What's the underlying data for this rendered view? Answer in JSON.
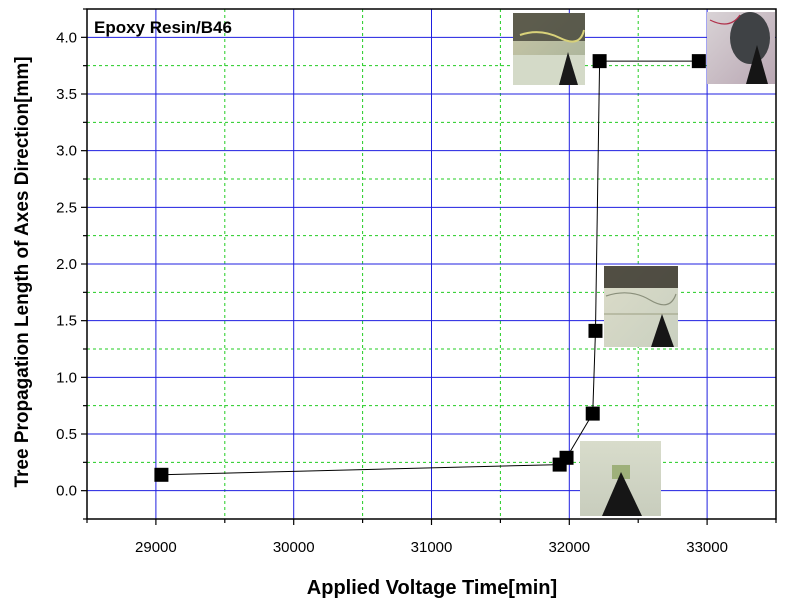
{
  "chart_data": {
    "type": "scatter",
    "title": "Epoxy Resin/B46",
    "xlabel": "Applied Voltage Time[min]",
    "ylabel": "Tree Propagation Length of Axes Direction[mm]",
    "xlim": [
      28500,
      33500
    ],
    "ylim": [
      -0.25,
      4.25
    ],
    "xticks": [
      "29000",
      "30000",
      "31000",
      "32000",
      "33000"
    ],
    "yticks": [
      "0.0",
      "0.5",
      "1.0",
      "1.5",
      "2.0",
      "2.5",
      "3.0",
      "3.5",
      "4.0"
    ],
    "grid": true,
    "series": [
      {
        "marker": "square",
        "color": "#000000",
        "x": [
          29040,
          31930,
          31980,
          32170,
          32190,
          32220,
          32940
        ],
        "y": [
          0.14,
          0.23,
          0.29,
          0.68,
          1.41,
          3.79,
          3.79
        ]
      }
    ],
    "inset_images": [
      {
        "name": "tree-micrograph-1"
      },
      {
        "name": "tree-micrograph-2"
      },
      {
        "name": "tree-micrograph-3"
      },
      {
        "name": "tree-micrograph-4"
      }
    ]
  }
}
